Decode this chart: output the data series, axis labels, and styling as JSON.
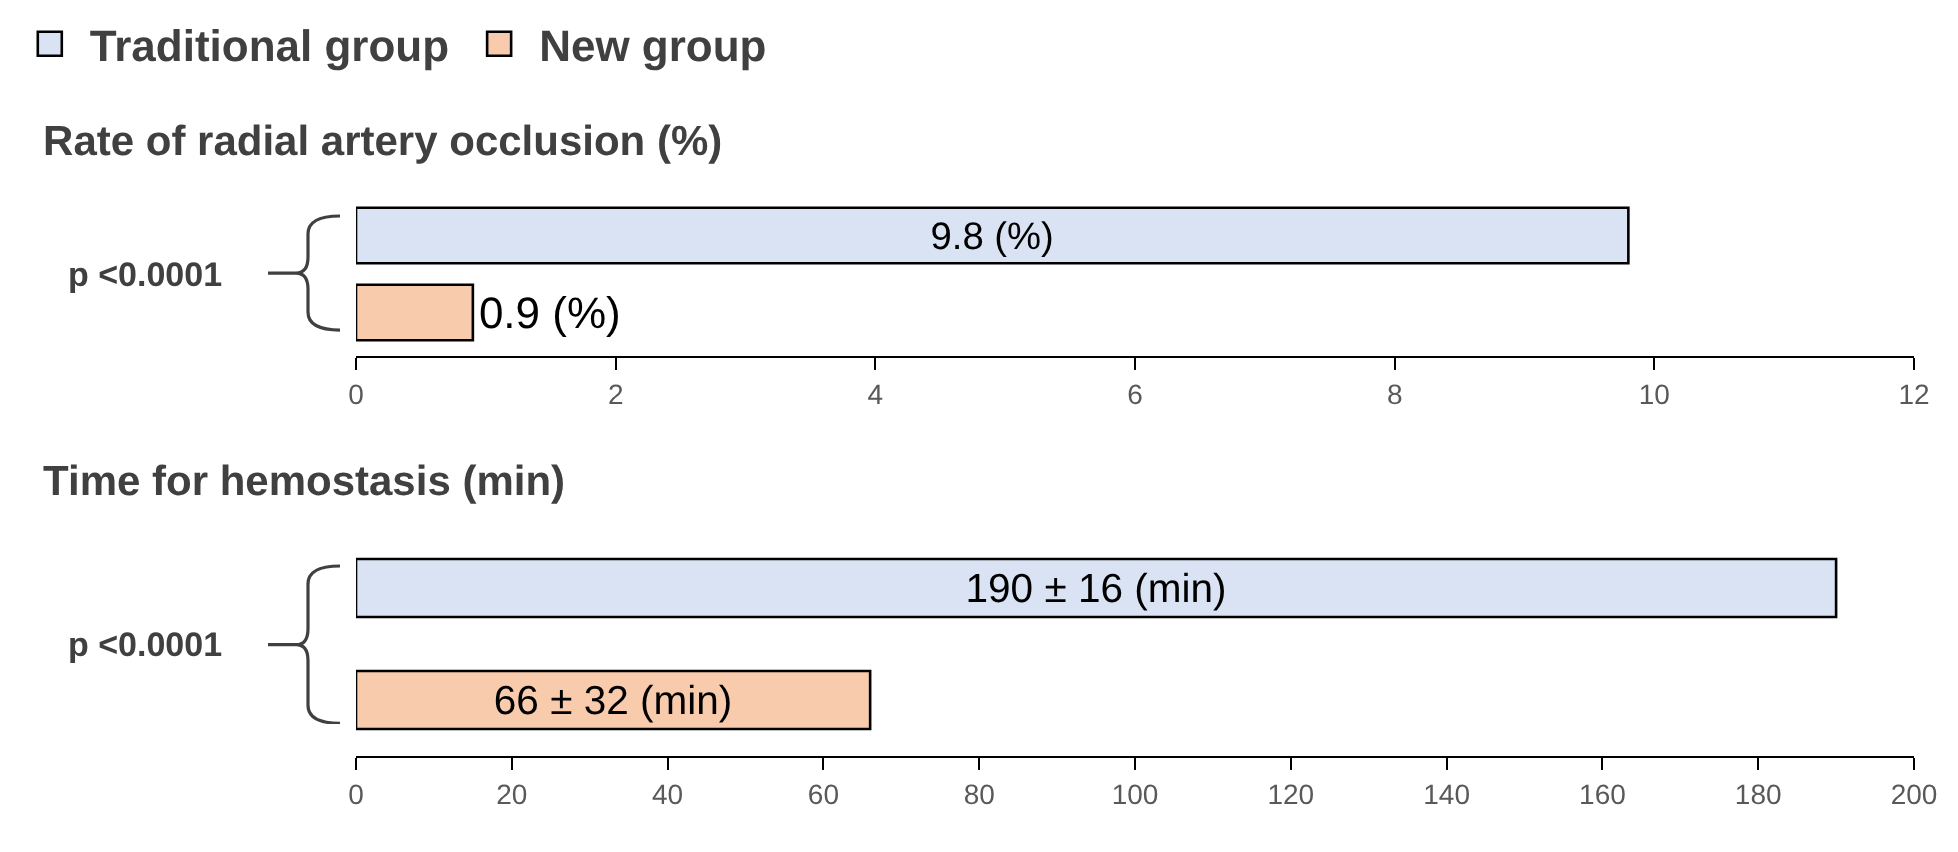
{
  "chart_data": [
    {
      "type": "bar",
      "orientation": "horizontal",
      "title": "Rate of radial artery occlusion (%)",
      "categories": [
        null
      ],
      "legend": "top left",
      "grid": false,
      "xlim": [
        0,
        12
      ],
      "xticks": [
        0,
        2,
        4,
        6,
        8,
        10,
        12
      ],
      "tick_labels": "x",
      "annotations": [
        "p <0.0001"
      ],
      "series": [
        {
          "name": "Traditional group",
          "color": "#dae3f3",
          "values": [
            9.8
          ],
          "value_labels": [
            "9.8 (%)"
          ]
        },
        {
          "name": "New group",
          "color": "#f8cbad",
          "values": [
            0.9
          ],
          "value_labels": [
            "0.9 (%)"
          ]
        }
      ]
    },
    {
      "type": "bar",
      "orientation": "horizontal",
      "title": "Time for hemostasis (min)",
      "categories": [
        null,
        null
      ],
      "grid": false,
      "xlim": [
        0,
        200
      ],
      "xticks": [
        0,
        20,
        40,
        60,
        80,
        100,
        120,
        140,
        160,
        180,
        200
      ],
      "tick_labels": "x",
      "annotations": [
        "p <0.0001"
      ],
      "series": [
        {
          "colors": [
            "#dae3f3",
            "#f8cbad"
          ],
          "values": [
            190,
            66
          ],
          "value_labels": [
            "190 ± 16 (min)",
            "66 ± 32 (min)"
          ]
        }
      ]
    }
  ]
}
